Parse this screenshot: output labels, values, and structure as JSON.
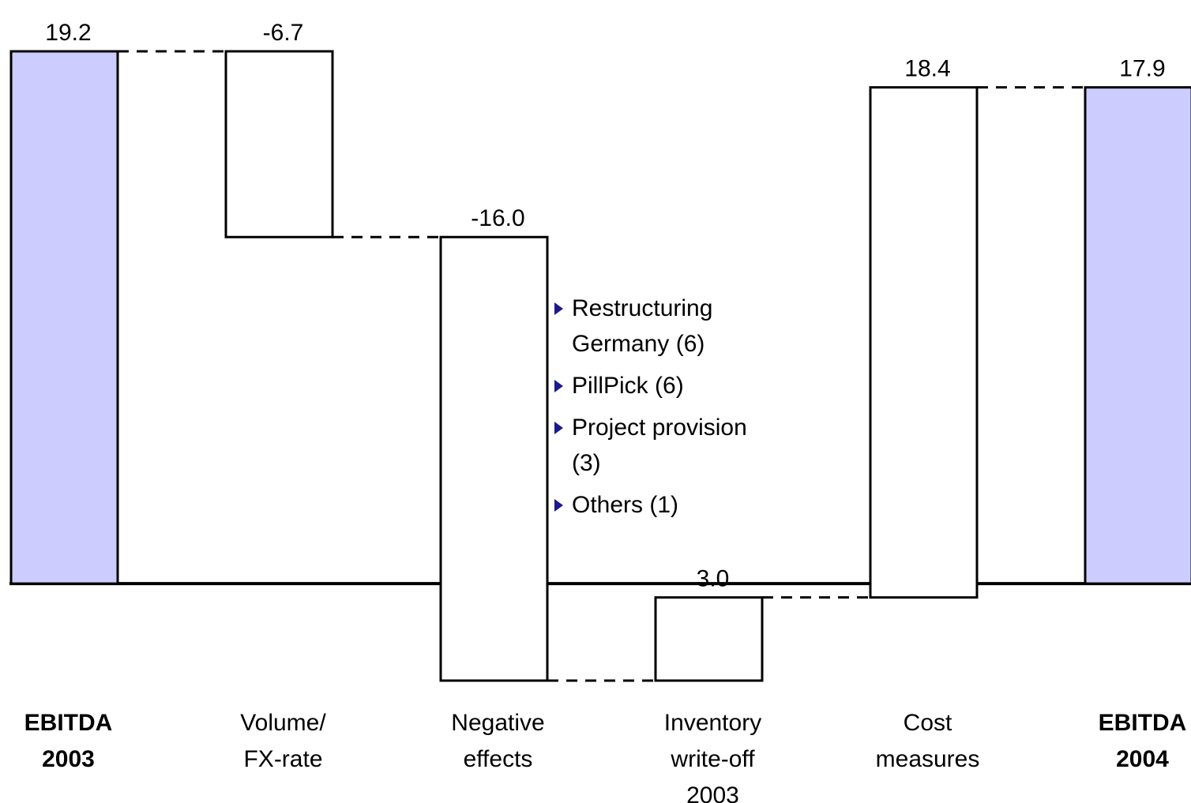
{
  "chart_data": {
    "type": "waterfall",
    "categories": [
      "EBITDA\n2003",
      "Volume/\nFX-rate",
      "Negative\neffects",
      "Inventory\nwrite-off\n2003",
      "Cost\nmeasures",
      "EBITDA\n2004"
    ],
    "values": [
      19.2,
      -6.7,
      -16.0,
      3.0,
      18.4,
      17.9
    ],
    "value_labels": [
      "19.2",
      "-6.7",
      "-16.0",
      "3.0",
      "18.4",
      "17.9"
    ],
    "is_total": [
      true,
      false,
      false,
      false,
      false,
      true
    ],
    "colors": [
      "#ccccff",
      "#ffffff",
      "#ffffff",
      "#ffffff",
      "#ffffff",
      "#ccccff"
    ],
    "annotation": [
      "Restructuring Germany (6)",
      "PillPick (6)",
      "Project provision (3)",
      "Others (1)"
    ]
  }
}
